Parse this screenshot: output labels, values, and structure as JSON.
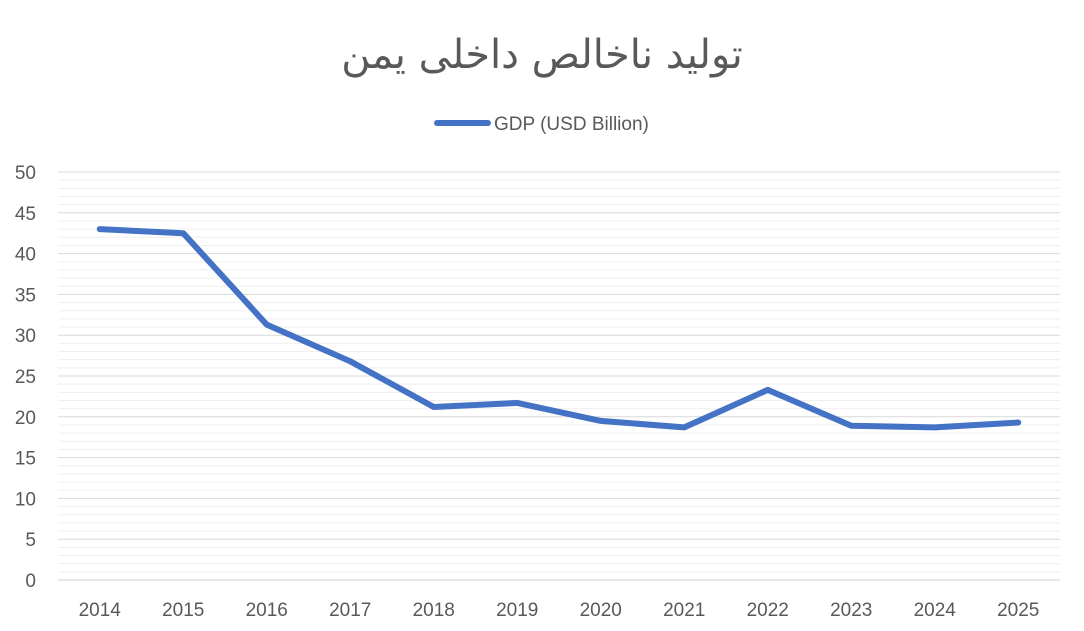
{
  "chart_data": {
    "type": "line",
    "title": "تولید ناخالص داخلی یمن",
    "xlabel": "",
    "ylabel": "",
    "categories": [
      "2014",
      "2015",
      "2016",
      "2017",
      "2018",
      "2019",
      "2020",
      "2021",
      "2022",
      "2023",
      "2024",
      "2025"
    ],
    "series": [
      {
        "name": "GDP (USD Billion)",
        "color": "#4472C4",
        "values": [
          43.0,
          42.5,
          31.3,
          26.8,
          21.2,
          21.7,
          19.5,
          18.7,
          23.3,
          18.9,
          18.7,
          19.3
        ]
      }
    ],
    "ylim": [
      0,
      50
    ],
    "yticks": [
      0,
      5,
      10,
      15,
      20,
      25,
      30,
      35,
      40,
      45,
      50
    ],
    "grid": true,
    "legend": "top"
  }
}
